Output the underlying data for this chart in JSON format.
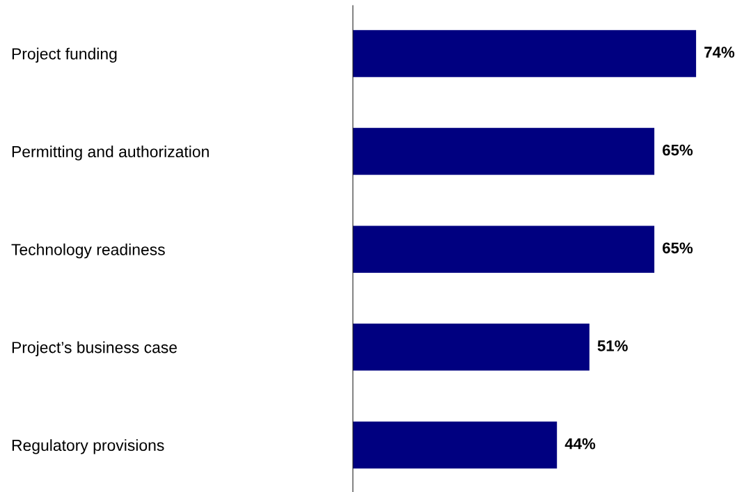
{
  "chart_data": {
    "type": "bar",
    "orientation": "horizontal",
    "categories": [
      "Project funding",
      "Permitting and authorization",
      "Technology readiness",
      "Project’s business case",
      "Regulatory provisions"
    ],
    "values": [
      74,
      65,
      65,
      51,
      44
    ],
    "value_labels": [
      "74%",
      "65%",
      "65%",
      "51%",
      "44%"
    ],
    "color": "#000080",
    "tick_labels": "y",
    "grid": false,
    "legend": false
  }
}
